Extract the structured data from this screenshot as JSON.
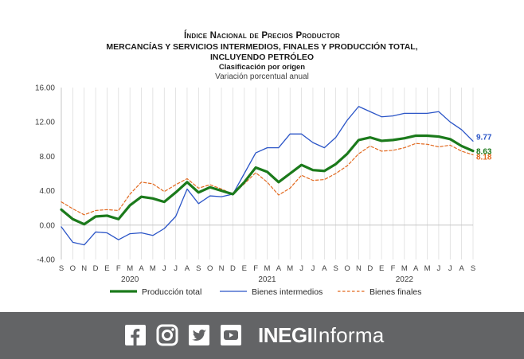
{
  "chart_data": {
    "type": "line",
    "title": "Índice Nacional de Precios Productor",
    "subtitle_lines": [
      "MERCANCÍAS Y SERVICIOS INTERMEDIOS, FINALES Y PRODUCCIÓN TOTAL,",
      "INCLUYENDO PETRÓLEO",
      "Clasificación por origen"
    ],
    "ylabel": "Variación porcentual anual",
    "ylim": [
      -4,
      16
    ],
    "yticks": [
      "16.00",
      "12.00",
      "8.00",
      "4.00",
      "0.00",
      "-4.00"
    ],
    "month_labels": [
      "S",
      "O",
      "N",
      "D",
      "E",
      "F",
      "M",
      "A",
      "M",
      "J",
      "J",
      "A",
      "S",
      "O",
      "N",
      "D",
      "E",
      "F",
      "M",
      "A",
      "M",
      "J",
      "J",
      "A",
      "S",
      "O",
      "N",
      "D",
      "E",
      "F",
      "M",
      "A",
      "M",
      "J",
      "J",
      "A",
      "S"
    ],
    "year_labels": [
      {
        "label": "2020",
        "index": 6
      },
      {
        "label": "2021",
        "index": 18
      },
      {
        "label": "2022",
        "index": 30
      }
    ],
    "grid": "vertical",
    "legend_position": "bottom",
    "series": [
      {
        "name": "Producción total",
        "color": "#1b7a1b",
        "style": "solid-thick",
        "end_label": "8.63",
        "values": [
          1.8,
          0.7,
          0.1,
          1.0,
          1.1,
          0.7,
          2.3,
          3.3,
          3.1,
          2.7,
          3.8,
          5.0,
          3.8,
          4.4,
          4.0,
          3.6,
          5.0,
          6.7,
          6.2,
          5.0,
          6.0,
          7.0,
          6.4,
          6.3,
          7.1,
          8.3,
          9.9,
          10.2,
          9.8,
          9.9,
          10.1,
          10.4,
          10.4,
          10.3,
          10.0,
          9.2,
          8.63
        ]
      },
      {
        "name": "Bienes intermedios",
        "color": "#2b55c7",
        "style": "solid",
        "end_label": "9.77",
        "values": [
          -0.2,
          -2.0,
          -2.3,
          -0.8,
          -0.9,
          -1.7,
          -1.0,
          -0.9,
          -1.2,
          -0.4,
          1.0,
          4.2,
          2.5,
          3.4,
          3.3,
          3.6,
          6.0,
          8.4,
          9.0,
          9.0,
          10.6,
          10.6,
          9.6,
          9.0,
          10.2,
          12.2,
          13.8,
          13.2,
          12.6,
          12.7,
          13.0,
          13.0,
          13.0,
          13.2,
          12.0,
          11.1,
          9.77
        ]
      },
      {
        "name": "Bienes finales",
        "color": "#e2691f",
        "style": "dashed",
        "end_label": "8.18",
        "values": [
          2.7,
          1.9,
          1.2,
          1.7,
          1.8,
          1.7,
          3.6,
          5.0,
          4.8,
          3.9,
          4.7,
          5.4,
          4.3,
          4.7,
          4.2,
          3.6,
          4.8,
          6.1,
          5.0,
          3.5,
          4.3,
          5.8,
          5.2,
          5.3,
          6.0,
          6.9,
          8.3,
          9.2,
          8.6,
          8.7,
          9.0,
          9.5,
          9.4,
          9.1,
          9.3,
          8.6,
          8.18
        ]
      }
    ]
  },
  "footer": {
    "brand_bold": "INEGI",
    "brand_regular": "Informa",
    "social_icons": [
      "facebook-icon",
      "instagram-icon",
      "twitter-icon",
      "youtube-icon"
    ]
  }
}
